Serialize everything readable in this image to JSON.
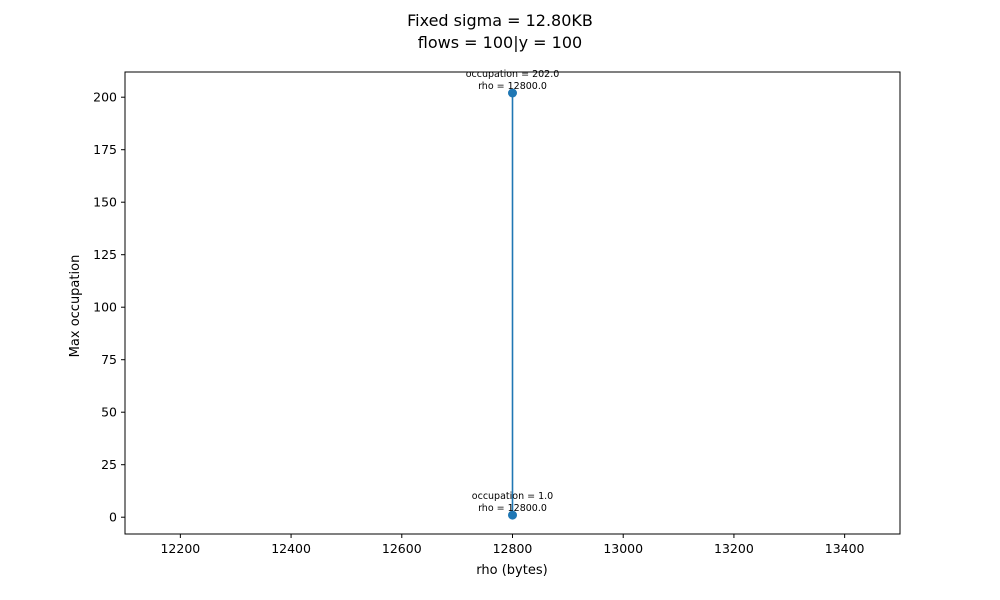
{
  "chart_data": {
    "type": "line",
    "title": "Fixed sigma = 12.80KB",
    "subtitle": "flows = 100|y = 100",
    "xlabel": "rho (bytes)",
    "ylabel": "Max occupation",
    "xlim": [
      12100,
      13500
    ],
    "ylim": [
      -8,
      212
    ],
    "xticks": [
      12200,
      12400,
      12600,
      12800,
      13000,
      13200,
      13400
    ],
    "yticks": [
      0,
      25,
      50,
      75,
      100,
      125,
      150,
      175,
      200
    ],
    "grid": false,
    "series": [
      {
        "color": "#1f77b4",
        "points": [
          {
            "x": 12800,
            "y": 1.0
          },
          {
            "x": 12800,
            "y": 202.0
          }
        ]
      }
    ],
    "annotations": [
      {
        "line1": "occupation = 202.0",
        "line2": "rho = 12800.0",
        "x": 12800,
        "y": 202.0
      },
      {
        "line1": "occupation = 1.0",
        "line2": "rho = 12800.0",
        "x": 12800,
        "y": 1.0
      }
    ]
  }
}
